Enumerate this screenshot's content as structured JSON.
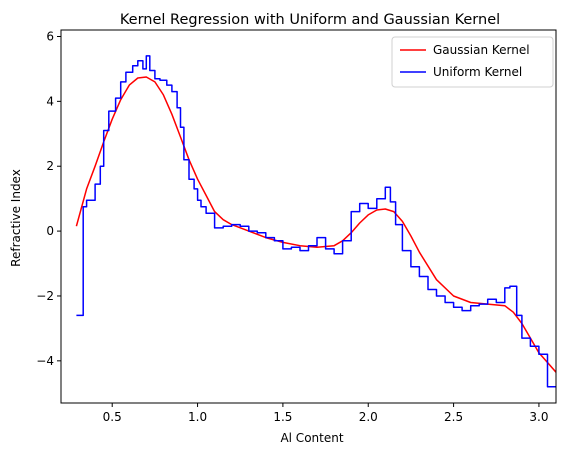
{
  "chart_data": {
    "type": "line",
    "title": "Kernel Regression with Uniform and Gaussian Kernel",
    "xlabel": "Al Content",
    "ylabel": "Refractive Index",
    "xlim": [
      0.2,
      3.1
    ],
    "ylim": [
      -5.3,
      6.2
    ],
    "xticks": [
      0.5,
      1.0,
      1.5,
      2.0,
      2.5,
      3.0
    ],
    "xtick_labels": [
      "0.5",
      "1.0",
      "1.5",
      "2.0",
      "2.5",
      "3.0"
    ],
    "yticks": [
      -4,
      -2,
      0,
      2,
      4,
      6
    ],
    "ytick_labels": [
      "−4",
      "−2",
      "0",
      "2",
      "4",
      "6"
    ],
    "grid": false,
    "legend_position": "top-right",
    "series": [
      {
        "name": "Gaussian Kernel",
        "color": "#ff0000",
        "step": false,
        "x": [
          0.29,
          0.35,
          0.4,
          0.45,
          0.5,
          0.55,
          0.6,
          0.65,
          0.7,
          0.75,
          0.8,
          0.85,
          0.9,
          0.95,
          1.0,
          1.05,
          1.1,
          1.15,
          1.2,
          1.3,
          1.4,
          1.5,
          1.6,
          1.7,
          1.8,
          1.85,
          1.9,
          1.95,
          2.0,
          2.05,
          2.1,
          2.15,
          2.2,
          2.25,
          2.3,
          2.4,
          2.5,
          2.6,
          2.7,
          2.8,
          2.85,
          2.9,
          2.95,
          3.0,
          3.05,
          3.1
        ],
        "y": [
          0.15,
          1.3,
          2.0,
          2.75,
          3.45,
          4.05,
          4.5,
          4.72,
          4.75,
          4.6,
          4.2,
          3.6,
          2.9,
          2.2,
          1.6,
          1.1,
          0.6,
          0.35,
          0.2,
          0.0,
          -0.2,
          -0.35,
          -0.45,
          -0.5,
          -0.45,
          -0.3,
          -0.05,
          0.25,
          0.5,
          0.65,
          0.68,
          0.6,
          0.3,
          -0.15,
          -0.65,
          -1.5,
          -2.0,
          -2.2,
          -2.25,
          -2.3,
          -2.5,
          -2.85,
          -3.3,
          -3.75,
          -4.05,
          -4.35
        ]
      },
      {
        "name": "Uniform Kernel",
        "color": "#0000ff",
        "step": true,
        "x": [
          0.29,
          0.33,
          0.35,
          0.4,
          0.43,
          0.45,
          0.48,
          0.52,
          0.55,
          0.58,
          0.62,
          0.65,
          0.68,
          0.7,
          0.72,
          0.75,
          0.78,
          0.82,
          0.85,
          0.88,
          0.9,
          0.92,
          0.95,
          0.98,
          1.0,
          1.02,
          1.05,
          1.1,
          1.15,
          1.2,
          1.25,
          1.3,
          1.35,
          1.4,
          1.45,
          1.5,
          1.55,
          1.6,
          1.65,
          1.7,
          1.75,
          1.8,
          1.85,
          1.9,
          1.95,
          2.0,
          2.05,
          2.1,
          2.13,
          2.16,
          2.2,
          2.25,
          2.3,
          2.35,
          2.4,
          2.45,
          2.5,
          2.55,
          2.6,
          2.65,
          2.7,
          2.75,
          2.8,
          2.83,
          2.87,
          2.9,
          2.95,
          3.0,
          3.05,
          3.1
        ],
        "y": [
          -2.6,
          0.75,
          0.95,
          1.45,
          2.0,
          3.1,
          3.7,
          4.1,
          4.6,
          4.9,
          5.1,
          5.25,
          5.0,
          5.4,
          4.95,
          4.7,
          4.65,
          4.5,
          4.3,
          3.8,
          3.2,
          2.2,
          1.6,
          1.3,
          0.95,
          0.75,
          0.55,
          0.1,
          0.15,
          0.2,
          0.15,
          0.0,
          -0.05,
          -0.2,
          -0.3,
          -0.55,
          -0.5,
          -0.6,
          -0.45,
          -0.2,
          -0.55,
          -0.7,
          -0.3,
          0.6,
          0.85,
          0.7,
          1.0,
          1.35,
          0.9,
          0.2,
          -0.6,
          -1.1,
          -1.4,
          -1.8,
          -2.0,
          -2.2,
          -2.35,
          -2.45,
          -2.3,
          -2.25,
          -2.1,
          -2.2,
          -1.75,
          -1.7,
          -2.6,
          -3.3,
          -3.55,
          -3.8,
          -4.8,
          -4.8
        ]
      }
    ]
  }
}
